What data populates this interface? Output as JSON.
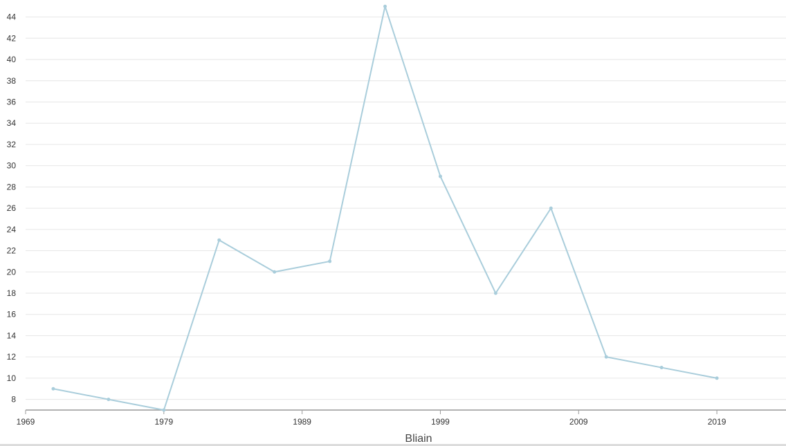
{
  "chart_data": {
    "type": "line",
    "title": "",
    "xlabel": "Bliain",
    "ylabel": "",
    "xlim": [
      1969,
      2024
    ],
    "ylim": [
      7,
      45.6
    ],
    "x_ticks": [
      1969,
      1979,
      1989,
      1999,
      2009,
      2019
    ],
    "y_ticks": [
      8,
      10,
      12,
      14,
      16,
      18,
      20,
      22,
      24,
      26,
      28,
      30,
      32,
      34,
      36,
      38,
      40,
      42,
      44
    ],
    "grid": true,
    "legend": "none",
    "colors": {
      "line": "#a9cddb",
      "grid": "#e6e6e6",
      "axis": "#999999"
    },
    "series": [
      {
        "x": [
          1971,
          1975,
          1979,
          1983,
          1987,
          1991,
          1995,
          1999,
          2003,
          2007,
          2011,
          2015,
          2019
        ],
        "values": [
          9,
          8,
          7,
          23,
          20,
          21,
          45,
          29,
          18,
          26,
          12,
          11,
          10
        ]
      }
    ]
  }
}
